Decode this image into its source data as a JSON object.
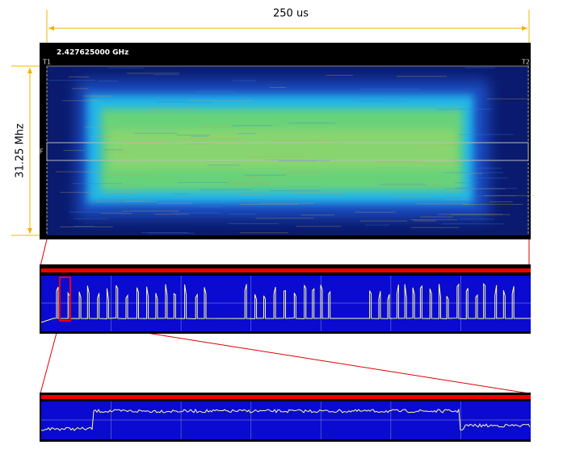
{
  "dimension_top": "250 us",
  "dimension_left": "31.25 Mhz",
  "spectrogram": {
    "frequency": "2.427625000 GHz",
    "marker_t1": "T1",
    "marker_t2": "T2",
    "marker_f": "F"
  }
}
